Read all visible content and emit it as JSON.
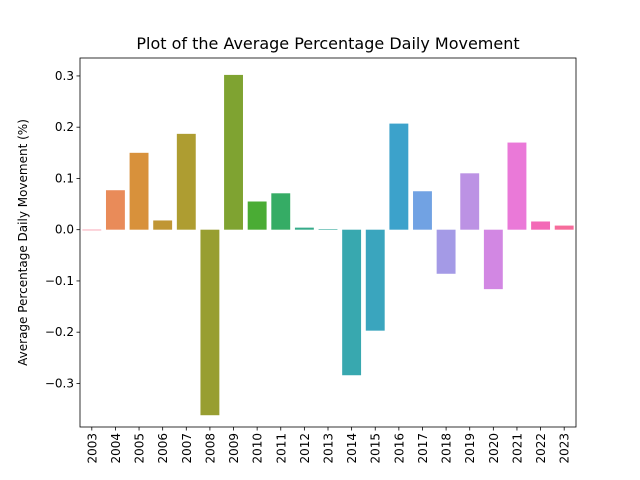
{
  "chart_data": {
    "type": "bar",
    "title": "Plot of the Average Percentage Daily Movement",
    "xlabel": "",
    "ylabel": "Average Percentage Daily Movement (%)",
    "ylim": [
      -0.385,
      0.335
    ],
    "yticks": [
      -0.3,
      -0.2,
      -0.1,
      0.0,
      0.1,
      0.2,
      0.3
    ],
    "ytick_labels": [
      "−0.3",
      "−0.2",
      "−0.1",
      "0.0",
      "0.1",
      "0.2",
      "0.3"
    ],
    "grid": false,
    "categories": [
      "2003",
      "2004",
      "2005",
      "2006",
      "2007",
      "2008",
      "2009",
      "2010",
      "2011",
      "2012",
      "2013",
      "2014",
      "2015",
      "2016",
      "2017",
      "2018",
      "2019",
      "2020",
      "2021",
      "2022",
      "2023"
    ],
    "values": [
      -0.001,
      0.077,
      0.15,
      0.018,
      0.187,
      -0.362,
      0.302,
      0.055,
      0.071,
      0.004,
      0.001,
      -0.284,
      -0.197,
      0.207,
      0.075,
      -0.086,
      0.11,
      -0.116,
      0.17,
      0.016,
      0.008
    ],
    "colors": [
      "#f77189",
      "#e98b59",
      "#d8913b",
      "#c09634",
      "#ae9d31",
      "#989e31",
      "#7fa331",
      "#4aac34",
      "#35ac65",
      "#36ab8a",
      "#37aa9d",
      "#38a8af",
      "#3aa5be",
      "#3ca2cb",
      "#71a2e3",
      "#a49ae6",
      "#bc92e4",
      "#d287e3",
      "#ea79d8",
      "#f369b7",
      "#f66c9b"
    ]
  }
}
